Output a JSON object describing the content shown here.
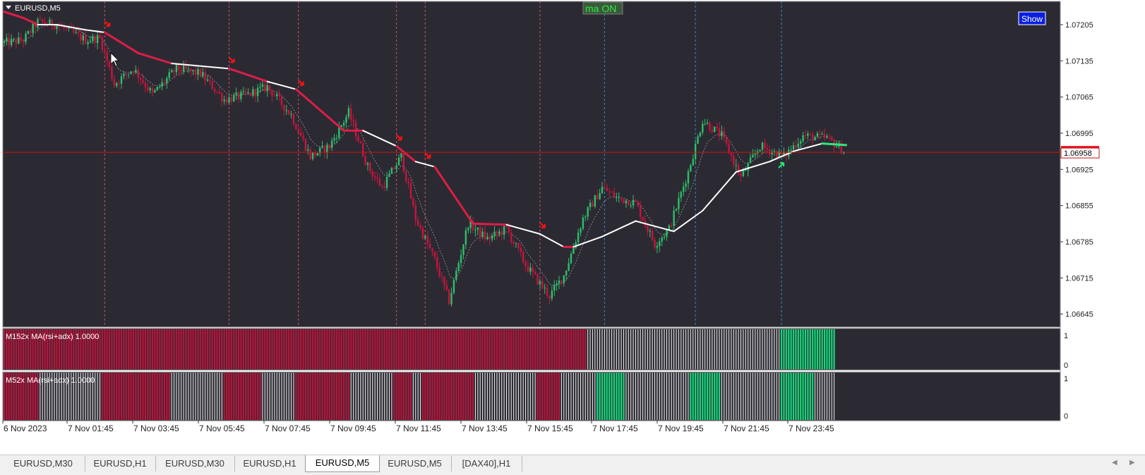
{
  "symbol_title": "EURUSD,M5",
  "ma_toggle_label": "ma ON",
  "show_button_label": "Show",
  "current_price": "1.06958",
  "price_axis_labels": [
    "1.07205",
    "1.07135",
    "1.07065",
    "1.06995",
    "1.06925",
    "1.06855",
    "1.06785",
    "1.06715",
    "1.06645"
  ],
  "time_axis_labels": [
    "6 Nov 2023",
    "7 Nov 01:45",
    "7 Nov 03:45",
    "7 Nov 05:45",
    "7 Nov 07:45",
    "7 Nov 09:45",
    "7 Nov 11:45",
    "7 Nov 13:45",
    "7 Nov 15:45",
    "7 Nov 17:45",
    "7 Nov 19:45",
    "7 Nov 21:45",
    "7 Nov 23:45"
  ],
  "indicator1": {
    "label": "M152x MA(rsi+adx)  1.0000",
    "scale_top": "1",
    "scale_bottom": "0"
  },
  "indicator2": {
    "label": "M52x MA(rsi+adx)  1.0000",
    "scale_top": "1",
    "scale_bottom": "0"
  },
  "tabs": [
    {
      "label": "EURUSD,M30",
      "active": false
    },
    {
      "label": "EURUSD,H1",
      "active": false
    },
    {
      "label": "EURUSD,M30",
      "active": false
    },
    {
      "label": "EURUSD,H1",
      "active": false
    },
    {
      "label": "EURUSD,M5",
      "active": true
    },
    {
      "label": "EURUSD,M5",
      "active": false
    },
    {
      "label": "[DAX40],H1",
      "active": false
    }
  ],
  "colors": {
    "background": "#2b2a33",
    "bull": "#2dbf6a",
    "bear": "#c8143c",
    "ma_bear": "#dc1e46",
    "ma_neutral": "#ffffff",
    "ma_bull": "#2ee87a",
    "price_line": "#c81414",
    "indicator_bull": "#17d67a",
    "indicator_bear": "#b8143a",
    "indicator_neutral": "#f2f2f2"
  },
  "chart_data": {
    "type": "candlestick",
    "title": "EURUSD,M5",
    "ylim": [
      1.0662,
      1.0725
    ],
    "y_ticks": [
      1.07205,
      1.07135,
      1.07065,
      1.06995,
      1.06925,
      1.06855,
      1.06785,
      1.06715,
      1.06645
    ],
    "current_price": 1.06958,
    "close_path": [
      {
        "i": 0,
        "p": 1.0717
      },
      {
        "i": 8,
        "p": 1.07175
      },
      {
        "i": 14,
        "p": 1.0721
      },
      {
        "i": 22,
        "p": 1.07205
      },
      {
        "i": 34,
        "p": 1.07175
      },
      {
        "i": 40,
        "p": 1.0718
      },
      {
        "i": 46,
        "p": 1.0709
      },
      {
        "i": 54,
        "p": 1.0712
      },
      {
        "i": 62,
        "p": 1.0707
      },
      {
        "i": 72,
        "p": 1.0712
      },
      {
        "i": 82,
        "p": 1.0711
      },
      {
        "i": 92,
        "p": 1.0706
      },
      {
        "i": 102,
        "p": 1.0707
      },
      {
        "i": 110,
        "p": 1.07085
      },
      {
        "i": 120,
        "p": 1.0703
      },
      {
        "i": 128,
        "p": 1.0695
      },
      {
        "i": 136,
        "p": 1.0697
      },
      {
        "i": 144,
        "p": 1.07035
      },
      {
        "i": 152,
        "p": 1.0693
      },
      {
        "i": 158,
        "p": 1.0689
      },
      {
        "i": 166,
        "p": 1.0695
      },
      {
        "i": 172,
        "p": 1.0683
      },
      {
        "i": 180,
        "p": 1.0675
      },
      {
        "i": 186,
        "p": 1.0667
      },
      {
        "i": 194,
        "p": 1.0682
      },
      {
        "i": 202,
        "p": 1.0679
      },
      {
        "i": 210,
        "p": 1.0681
      },
      {
        "i": 218,
        "p": 1.0674
      },
      {
        "i": 228,
        "p": 1.0668
      },
      {
        "i": 234,
        "p": 1.0672
      },
      {
        "i": 242,
        "p": 1.0683
      },
      {
        "i": 250,
        "p": 1.0689
      },
      {
        "i": 256,
        "p": 1.0687
      },
      {
        "i": 264,
        "p": 1.0686
      },
      {
        "i": 272,
        "p": 1.0678
      },
      {
        "i": 278,
        "p": 1.0681
      },
      {
        "i": 286,
        "p": 1.0692
      },
      {
        "i": 292,
        "p": 1.0702
      },
      {
        "i": 300,
        "p": 1.0699
      },
      {
        "i": 308,
        "p": 1.0691
      },
      {
        "i": 316,
        "p": 1.0697
      },
      {
        "i": 326,
        "p": 1.0695
      },
      {
        "i": 334,
        "p": 1.0699
      },
      {
        "i": 344,
        "p": 1.06985
      },
      {
        "i": 352,
        "p": 1.06958
      }
    ],
    "ma_path": [
      {
        "i": 0,
        "p": 1.0723,
        "c": "bear"
      },
      {
        "i": 8,
        "p": 1.07218,
        "c": "bear"
      },
      {
        "i": 14,
        "p": 1.07205,
        "c": "neutral"
      },
      {
        "i": 22,
        "p": 1.07205,
        "c": "neutral"
      },
      {
        "i": 34,
        "p": 1.07195,
        "c": "neutral"
      },
      {
        "i": 42,
        "p": 1.0719,
        "c": "bear"
      },
      {
        "i": 56,
        "p": 1.0715,
        "c": "bear"
      },
      {
        "i": 70,
        "p": 1.0713,
        "c": "neutral"
      },
      {
        "i": 94,
        "p": 1.0712,
        "c": "bear"
      },
      {
        "i": 110,
        "p": 1.07095,
        "c": "neutral"
      },
      {
        "i": 122,
        "p": 1.0708,
        "c": "bear"
      },
      {
        "i": 142,
        "p": 1.07,
        "c": "bear"
      },
      {
        "i": 150,
        "p": 1.07,
        "c": "neutral"
      },
      {
        "i": 164,
        "p": 1.0697,
        "c": "bear"
      },
      {
        "i": 172,
        "p": 1.0694,
        "c": "neutral"
      },
      {
        "i": 180,
        "p": 1.0693,
        "c": "bear"
      },
      {
        "i": 196,
        "p": 1.0682,
        "c": "bear"
      },
      {
        "i": 210,
        "p": 1.06818,
        "c": "neutral"
      },
      {
        "i": 224,
        "p": 1.068,
        "c": "neutral"
      },
      {
        "i": 234,
        "p": 1.06775,
        "c": "bear"
      },
      {
        "i": 238,
        "p": 1.06775,
        "c": "neutral"
      },
      {
        "i": 250,
        "p": 1.06795,
        "c": "neutral"
      },
      {
        "i": 264,
        "p": 1.06825,
        "c": "neutral"
      },
      {
        "i": 280,
        "p": 1.06805,
        "c": "neutral"
      },
      {
        "i": 292,
        "p": 1.06845,
        "c": "neutral"
      },
      {
        "i": 306,
        "p": 1.0692,
        "c": "neutral"
      },
      {
        "i": 320,
        "p": 1.0694,
        "c": "neutral"
      },
      {
        "i": 330,
        "p": 1.0696,
        "c": "neutral"
      },
      {
        "i": 342,
        "p": 1.06975,
        "c": "bull"
      },
      {
        "i": 352,
        "p": 1.06972,
        "c": "bull"
      }
    ],
    "sell_arrow_bars": [
      42,
      94,
      123,
      164,
      176,
      224
    ],
    "buy_arrow_bars": [
      325
    ],
    "signal_vlines_bars": [
      42,
      94,
      123,
      164,
      176,
      224,
      251,
      289,
      325
    ],
    "indicator1_segments": [
      {
        "from": 0,
        "to": 244,
        "state": "bear"
      },
      {
        "from": 244,
        "to": 325,
        "state": "neutral"
      },
      {
        "from": 325,
        "to": 348,
        "state": "bull"
      }
    ],
    "indicator2_segments": [
      {
        "from": 0,
        "to": 15,
        "state": "bear"
      },
      {
        "from": 15,
        "to": 41,
        "state": "neutral"
      },
      {
        "from": 41,
        "to": 70,
        "state": "bear"
      },
      {
        "from": 70,
        "to": 92,
        "state": "neutral"
      },
      {
        "from": 92,
        "to": 108,
        "state": "bear"
      },
      {
        "from": 108,
        "to": 122,
        "state": "neutral"
      },
      {
        "from": 122,
        "to": 145,
        "state": "bear"
      },
      {
        "from": 145,
        "to": 163,
        "state": "neutral"
      },
      {
        "from": 163,
        "to": 171,
        "state": "bear"
      },
      {
        "from": 171,
        "to": 175,
        "state": "neutral"
      },
      {
        "from": 175,
        "to": 197,
        "state": "bear"
      },
      {
        "from": 197,
        "to": 223,
        "state": "neutral"
      },
      {
        "from": 223,
        "to": 233,
        "state": "bear"
      },
      {
        "from": 233,
        "to": 248,
        "state": "neutral"
      },
      {
        "from": 248,
        "to": 260,
        "state": "bull"
      },
      {
        "from": 260,
        "to": 287,
        "state": "neutral"
      },
      {
        "from": 287,
        "to": 300,
        "state": "bull"
      },
      {
        "from": 300,
        "to": 325,
        "state": "neutral"
      },
      {
        "from": 325,
        "to": 339,
        "state": "bull"
      },
      {
        "from": 339,
        "to": 348,
        "state": "neutral"
      }
    ]
  }
}
